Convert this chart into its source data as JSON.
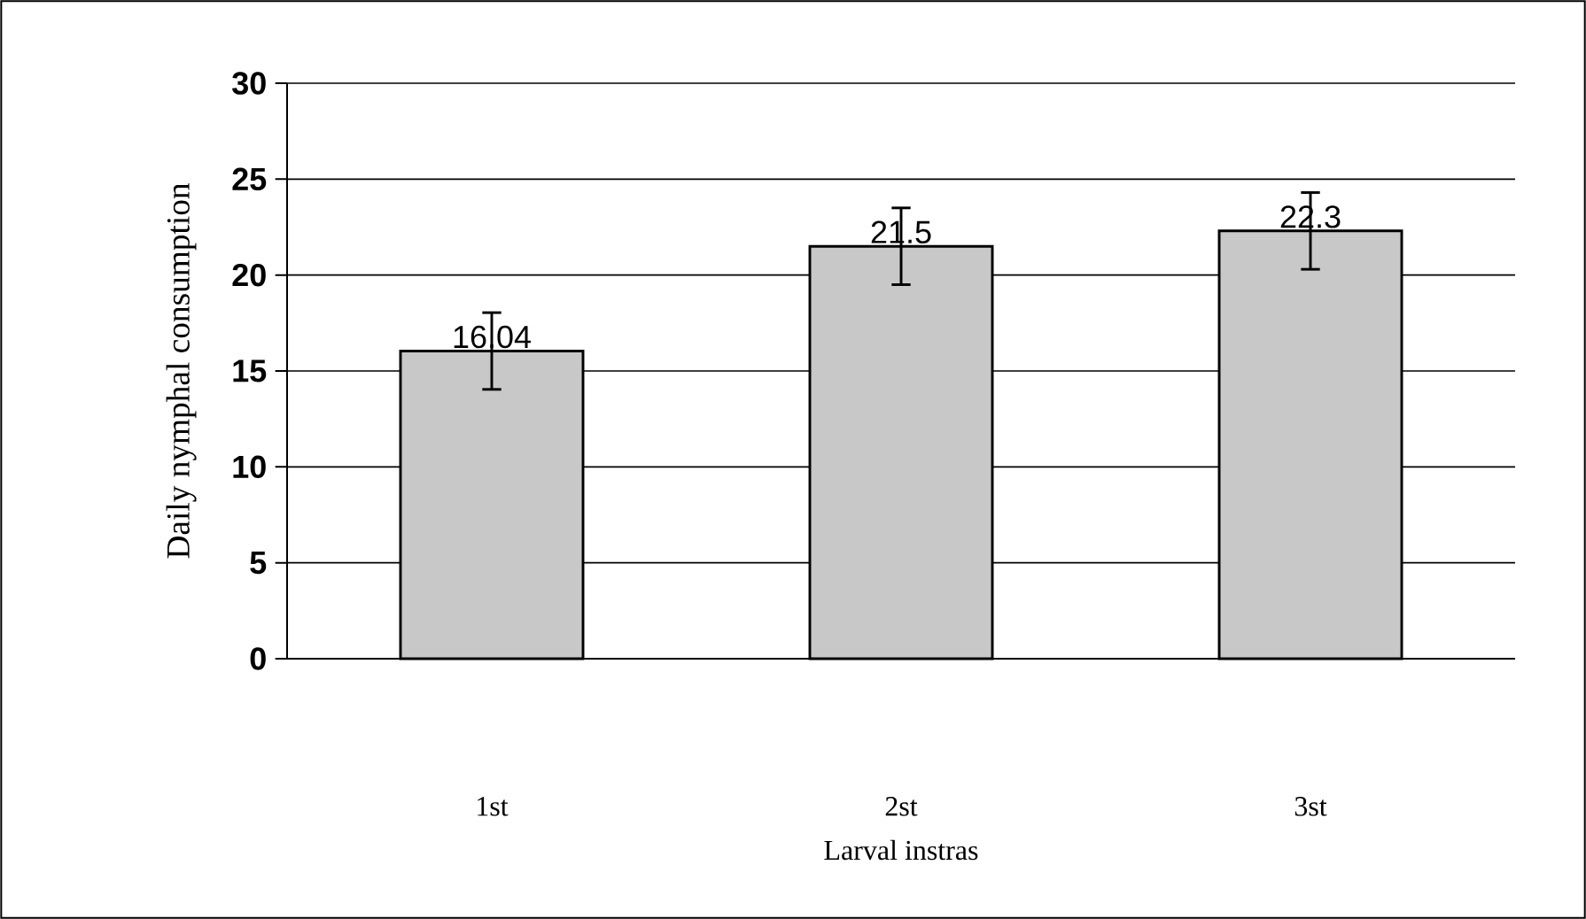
{
  "chart_data": {
    "type": "bar",
    "xlabel": "Larval instras",
    "ylabel": "Daily nymphal consumption",
    "categories": [
      "1st",
      "2st",
      "3st"
    ],
    "values": [
      16.04,
      21.5,
      22.3
    ],
    "errors": [
      2,
      2,
      2
    ],
    "color": "#c8c8c8",
    "data_labels": true,
    "ylim": [
      0,
      30
    ],
    "yticks": [
      0,
      5,
      10,
      15,
      20,
      25,
      30
    ],
    "grid": "y"
  }
}
